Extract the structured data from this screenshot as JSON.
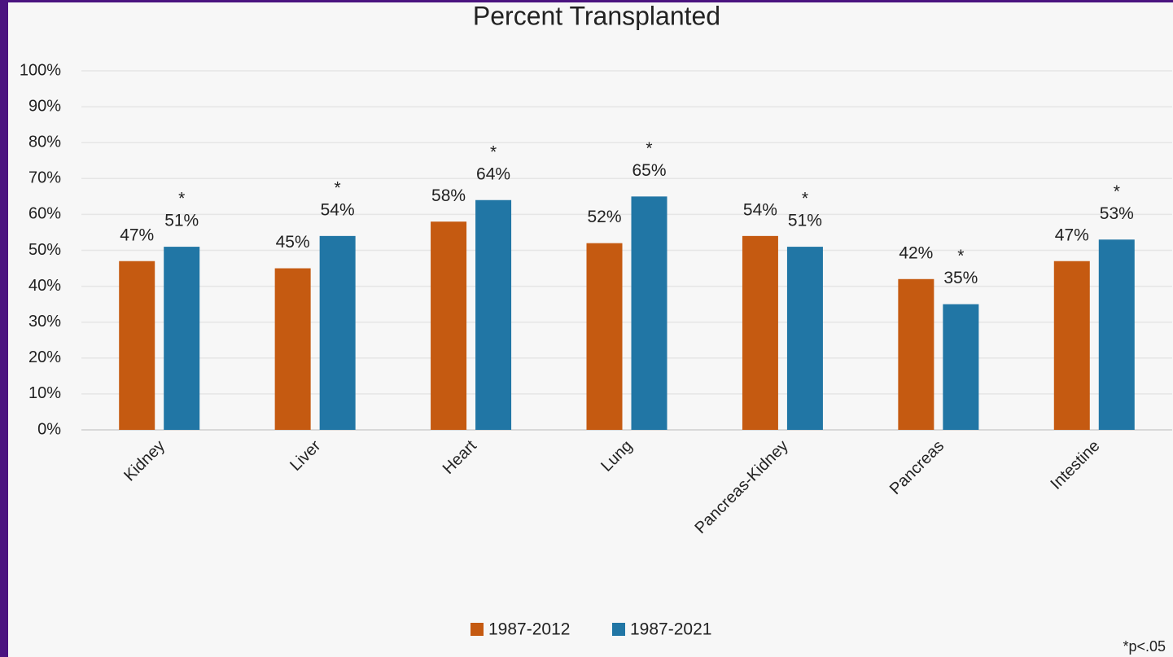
{
  "chart_data": {
    "type": "bar",
    "title": "Percent Transplanted",
    "categories": [
      "Kidney",
      "Liver",
      "Heart",
      "Lung",
      "Pancreas-Kidney",
      "Pancreas",
      "Intestine"
    ],
    "series": [
      {
        "name": "1987-2012",
        "color": "#c55a11",
        "values": [
          47,
          45,
          58,
          52,
          54,
          42,
          47
        ],
        "value_labels": [
          "47%",
          "45%",
          "58%",
          "52%",
          "54%",
          "42%",
          "47%"
        ]
      },
      {
        "name": "1987-2021",
        "color": "#2176a5",
        "values": [
          51,
          54,
          64,
          65,
          51,
          35,
          53
        ],
        "value_labels": [
          "51%",
          "54%",
          "64%",
          "65%",
          "51%",
          "35%",
          "53%"
        ],
        "markers": [
          "*",
          "*",
          "*",
          "*",
          "*",
          "*",
          "*"
        ]
      }
    ],
    "ylim": [
      0,
      100
    ],
    "yticks": [
      {
        "value": 0,
        "label": "0%"
      },
      {
        "value": 10,
        "label": "10%"
      },
      {
        "value": 20,
        "label": "20%"
      },
      {
        "value": 30,
        "label": "30%"
      },
      {
        "value": 40,
        "label": "40%"
      },
      {
        "value": 50,
        "label": "50%"
      },
      {
        "value": 60,
        "label": "60%"
      },
      {
        "value": 70,
        "label": "70%"
      },
      {
        "value": 80,
        "label": "80%"
      },
      {
        "value": 90,
        "label": "90%"
      },
      {
        "value": 100,
        "label": "100%"
      }
    ],
    "grid": true,
    "legend": "bottom",
    "footnote": "*p<.05"
  }
}
